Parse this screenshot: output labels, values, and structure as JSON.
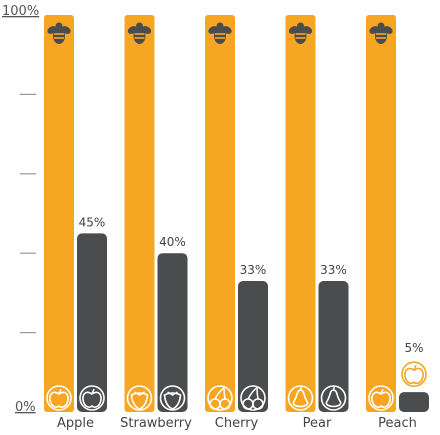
{
  "chart_data": {
    "type": "bar",
    "title": "",
    "xlabel": "",
    "ylabel": "",
    "ylim": [
      0,
      100
    ],
    "y_tick_labels": [
      "0%",
      "100%"
    ],
    "categories": [
      "Apple",
      "Strawberry",
      "Cherry",
      "Pear",
      "Peach"
    ],
    "category_icons": [
      "apple-icon",
      "strawberry-icon",
      "cherry-icon",
      "pear-icon",
      "peach-icon"
    ],
    "series": [
      {
        "values": [
          100,
          100,
          100,
          100,
          100
        ],
        "color": "#F6A623",
        "icon": "bee-icon"
      },
      {
        "values": [
          45,
          40,
          33,
          33,
          5
        ],
        "color": "#4A4C4E"
      }
    ],
    "data_labels": [
      "45%",
      "40%",
      "33%",
      "33%",
      "5%"
    ],
    "grid": false,
    "legend": "none"
  }
}
